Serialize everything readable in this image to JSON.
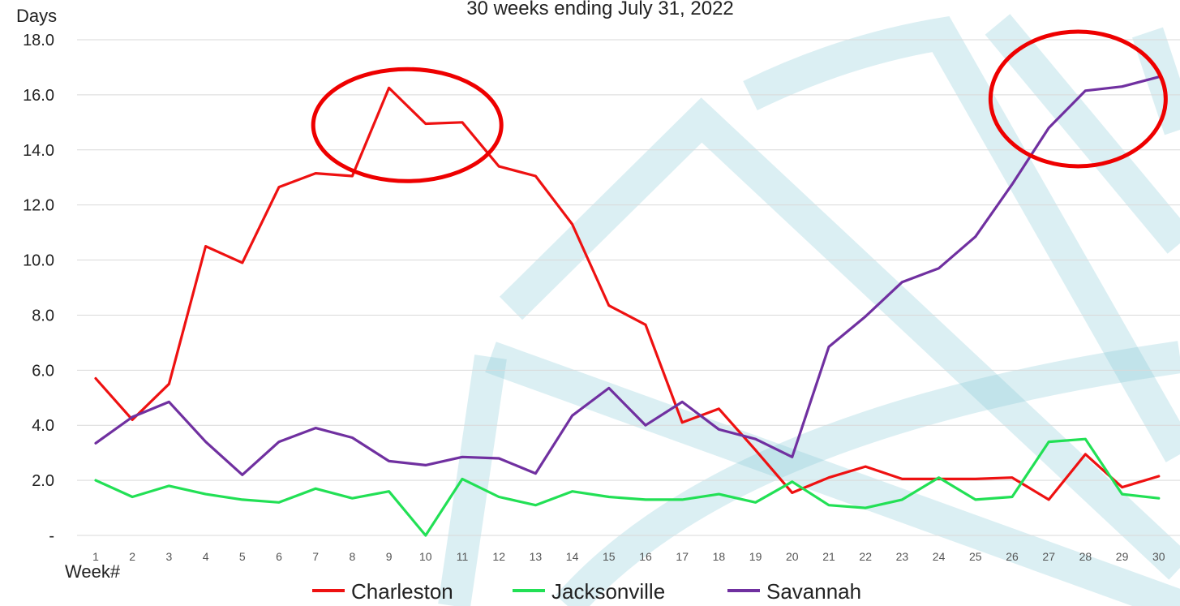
{
  "chart_data": {
    "type": "line",
    "title": "30 weeks ending July 31, 2022",
    "xlabel": "Week#",
    "ylabel": "Days",
    "ylim": [
      0,
      18
    ],
    "grid": true,
    "legend_position": "bottom",
    "y_ticks": [
      "-",
      "2.0",
      "4.0",
      "6.0",
      "8.0",
      "10.0",
      "12.0",
      "14.0",
      "16.0",
      "18.0"
    ],
    "categories": [
      "1",
      "2",
      "3",
      "4",
      "5",
      "6",
      "7",
      "8",
      "9",
      "10",
      "11",
      "12",
      "13",
      "14",
      "15",
      "16",
      "17",
      "18",
      "19",
      "20",
      "21",
      "22",
      "23",
      "24",
      "25",
      "26",
      "27",
      "28",
      "29",
      "30"
    ],
    "series": [
      {
        "name": "Charleston",
        "color": "#ee1111",
        "values": [
          5.7,
          4.2,
          5.5,
          10.5,
          9.9,
          12.65,
          13.15,
          13.05,
          16.25,
          14.95,
          15.0,
          13.4,
          13.05,
          11.3,
          8.35,
          7.65,
          4.1,
          4.6,
          3.1,
          1.55,
          2.1,
          2.5,
          2.05,
          2.05,
          2.05,
          2.1,
          1.3,
          2.95,
          1.75,
          2.15
        ]
      },
      {
        "name": "Jacksonville",
        "color": "#22e055",
        "values": [
          2.0,
          1.4,
          1.8,
          1.5,
          1.3,
          1.2,
          1.7,
          1.35,
          1.6,
          0.0,
          2.05,
          1.4,
          1.1,
          1.6,
          1.4,
          1.3,
          1.3,
          1.5,
          1.2,
          1.95,
          1.1,
          1.0,
          1.3,
          2.1,
          1.3,
          1.4,
          3.4,
          3.5,
          1.5,
          1.35
        ]
      },
      {
        "name": "Savannah",
        "color": "#7030a0",
        "values": [
          3.35,
          4.3,
          4.85,
          3.4,
          2.2,
          3.4,
          3.9,
          3.55,
          2.7,
          2.55,
          2.85,
          2.8,
          2.25,
          4.35,
          5.35,
          4.0,
          4.85,
          3.85,
          3.5,
          2.85,
          6.85,
          7.95,
          9.2,
          9.7,
          10.85,
          12.75,
          14.8,
          16.15,
          16.3,
          16.65
        ]
      }
    ],
    "annotations": [
      {
        "type": "ellipse",
        "color": "#ee0000",
        "center_week": 9.5,
        "center_value": 14.9
      },
      {
        "type": "ellipse",
        "color": "#ee0000",
        "center_week": 27.8,
        "center_value": 15.85
      }
    ]
  }
}
